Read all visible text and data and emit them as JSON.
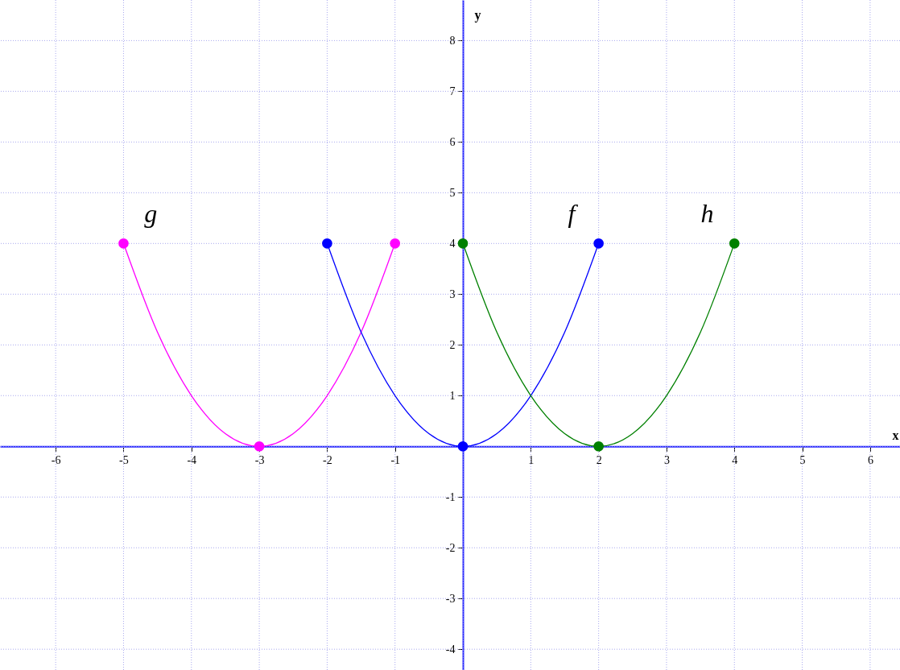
{
  "chart_data": {
    "type": "line",
    "xlabel": "x",
    "ylabel": "y",
    "xlim": [
      -6.82,
      6.44
    ],
    "ylim": [
      -4.41,
      8.8
    ],
    "xticks": [
      -6,
      -5,
      -4,
      -3,
      -2,
      -1,
      {
        "value": 0,
        "label": null
      },
      1,
      2,
      3,
      4,
      5,
      6
    ],
    "yticks": [
      -4,
      -3,
      -2,
      -1,
      {
        "value": 0,
        "label": null
      },
      1,
      2,
      3,
      4,
      5,
      6,
      7,
      8
    ],
    "grid": true,
    "marker": "none",
    "line_style": "solid",
    "series": [
      {
        "name": "g",
        "color": "#ff00ff",
        "x": [
          -5,
          -4.5,
          -4,
          -3.5,
          -3,
          -2.5,
          -2,
          -1.5,
          -1
        ],
        "values": [
          4,
          2.25,
          1,
          0.25,
          0,
          0.25,
          1,
          2.25,
          4
        ]
      },
      {
        "name": "f",
        "color": "#0000ff",
        "x": [
          -2,
          -1.5,
          -1,
          -0.5,
          0,
          0.5,
          1,
          1.5,
          2
        ],
        "values": [
          4,
          2.25,
          1,
          0.25,
          0,
          0.25,
          1,
          2.25,
          4
        ]
      },
      {
        "name": "h",
        "color": "#008000",
        "x": [
          0,
          0.5,
          1,
          1.5,
          2,
          2.5,
          3,
          3.5,
          4
        ],
        "values": [
          4,
          2.25,
          1,
          0.25,
          0,
          0.25,
          1,
          2.25,
          4
        ]
      },
      {
        "type": "scatter",
        "marker": "circle",
        "color": "#ff00ff",
        "x": [
          -5,
          -3,
          -1
        ],
        "values": [
          4,
          0,
          4
        ]
      },
      {
        "type": "scatter",
        "marker": "circle",
        "color": "#0000ff",
        "x": [
          -2,
          0,
          2
        ],
        "values": [
          4,
          0,
          4
        ]
      },
      {
        "type": "scatter",
        "marker": "circle",
        "color": "#008000",
        "x": [
          0,
          2,
          4
        ],
        "values": [
          4,
          0,
          4
        ]
      }
    ]
  }
}
